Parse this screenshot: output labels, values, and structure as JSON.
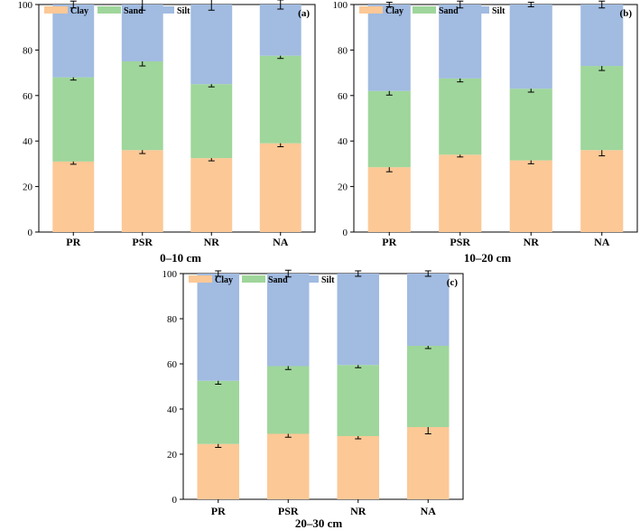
{
  "figure_colors": {
    "clay": "#fcc896",
    "sand": "#9fd69b",
    "silt": "#a1bbe1",
    "axis": "#000000",
    "error_bar": "#000000"
  },
  "chart_data": [
    {
      "type": "bar",
      "stacked": true,
      "panel_label": "(a)",
      "depth_label": "0–10 cm",
      "legend_position": "top-left",
      "legend": [
        "Clay",
        "Sand",
        "Silt"
      ],
      "categories": [
        "PR",
        "PSR",
        "NR",
        "NA"
      ],
      "ylim": [
        0,
        100
      ],
      "yticks": [
        0,
        20,
        40,
        60,
        80,
        100
      ],
      "series": [
        {
          "name": "Clay",
          "values": [
            31,
            36,
            32.5,
            39
          ],
          "errors": [
            1.2,
            1.5,
            1.2,
            1.5
          ]
        },
        {
          "name": "Sand",
          "values": [
            37,
            39,
            32.5,
            38.5
          ],
          "errors": [
            1.2,
            2.0,
            1.2,
            1.2
          ]
        },
        {
          "name": "Silt",
          "values": [
            32,
            25,
            35,
            22.5
          ],
          "errors": [
            1.5,
            2.5,
            2.5,
            2.0
          ]
        }
      ]
    },
    {
      "type": "bar",
      "stacked": true,
      "panel_label": "(b)",
      "depth_label": "10–20 cm",
      "legend_position": "top-left",
      "legend": [
        "Clay",
        "Sand",
        "Silt"
      ],
      "categories": [
        "PR",
        "PSR",
        "NR",
        "NA"
      ],
      "ylim": [
        0,
        100
      ],
      "yticks": [
        0,
        20,
        40,
        60,
        80,
        100
      ],
      "series": [
        {
          "name": "Clay",
          "values": [
            28.5,
            34,
            31.5,
            36
          ],
          "errors": [
            2.0,
            1.0,
            1.5,
            2.5
          ]
        },
        {
          "name": "Sand",
          "values": [
            33.5,
            33.5,
            31.5,
            37
          ],
          "errors": [
            1.8,
            1.5,
            1.5,
            2.0
          ]
        },
        {
          "name": "Silt",
          "values": [
            38,
            32.5,
            37,
            27
          ],
          "errors": [
            1.0,
            1.5,
            1.0,
            1.5
          ]
        }
      ]
    },
    {
      "type": "bar",
      "stacked": true,
      "panel_label": "(c)",
      "depth_label": "20–30 cm",
      "legend_position": "top-left",
      "legend": [
        "Clay",
        "Sand",
        "Silt"
      ],
      "categories": [
        "PR",
        "PSR",
        "NR",
        "NA"
      ],
      "ylim": [
        0,
        100
      ],
      "yticks": [
        0,
        20,
        40,
        60,
        80,
        100
      ],
      "series": [
        {
          "name": "Clay",
          "values": [
            24.5,
            29,
            28,
            32
          ],
          "errors": [
            1.5,
            1.5,
            1.2,
            3.0
          ]
        },
        {
          "name": "Sand",
          "values": [
            28,
            30,
            31.5,
            36
          ],
          "errors": [
            1.5,
            1.5,
            1.2,
            1.2
          ]
        },
        {
          "name": "Silt",
          "values": [
            47.5,
            41,
            40.5,
            32
          ],
          "errors": [
            1.2,
            1.5,
            1.2,
            1.2
          ]
        }
      ]
    }
  ]
}
